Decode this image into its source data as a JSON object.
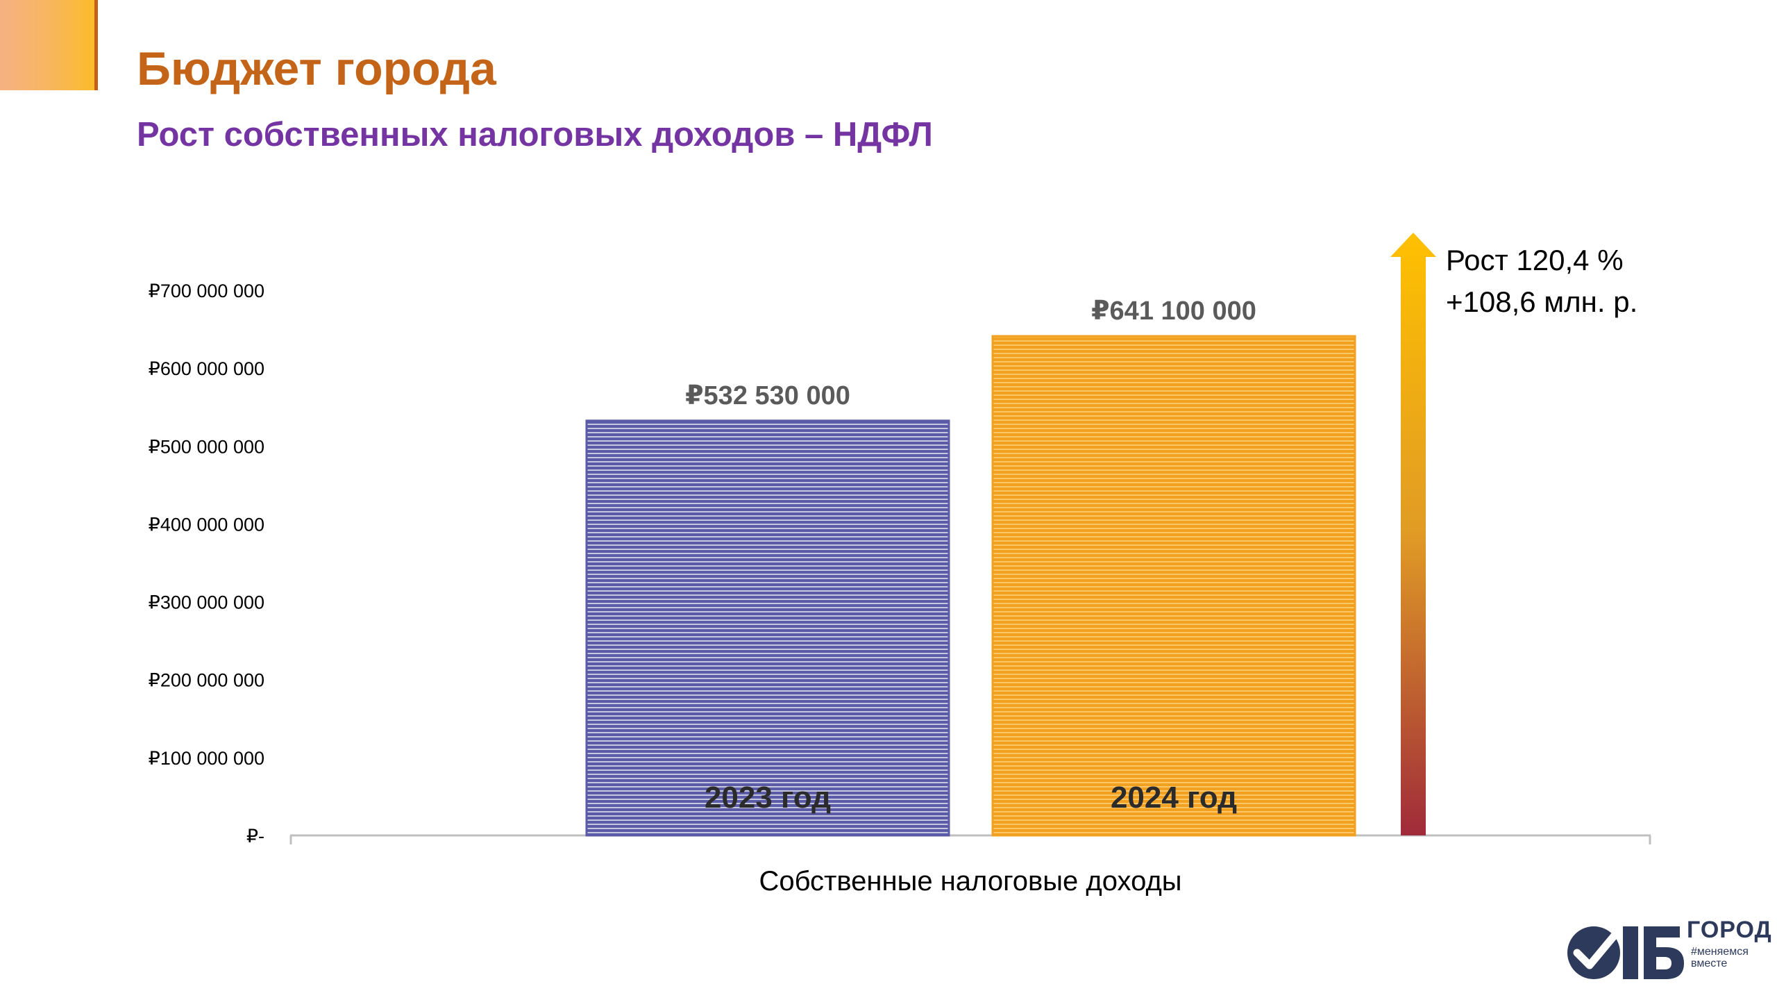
{
  "header": {
    "title": "Бюджет города",
    "subtitle": "Рост собственных налоговых доходов – НДФЛ"
  },
  "growth": {
    "line1": "Рост 120,4 %",
    "line2": "+108,6 млн. р."
  },
  "logo": {
    "word": "ГОРОД",
    "tag1": "#меняемся",
    "tag2": "вместе"
  },
  "colors": {
    "title": "#c46418",
    "subtitle": "#7434a2",
    "bar_2023": "#5b5ba8",
    "bar_2024": "#f2a020",
    "arrow_top": "#ffc000",
    "arrow_bottom": "#a02b3a"
  },
  "chart_data": {
    "type": "bar",
    "xlabel": "Собственные налоговые доходы",
    "ylabel": "",
    "ylim": [
      0,
      700000000
    ],
    "yticks": [
      0,
      100000000,
      200000000,
      300000000,
      400000000,
      500000000,
      600000000,
      700000000
    ],
    "ytick_labels": [
      "₽-",
      "₽100 000 000",
      "₽200 000 000",
      "₽300 000 000",
      "₽400 000 000",
      "₽500 000 000",
      "₽600 000 000",
      "₽700 000 000"
    ],
    "grid": false,
    "legend": "none",
    "series": [
      {
        "category": "2023 год",
        "value": 532530000,
        "label": "₽532 530 000"
      },
      {
        "category": "2024 год",
        "value": 641100000,
        "label": "₽641 100 000"
      }
    ]
  }
}
